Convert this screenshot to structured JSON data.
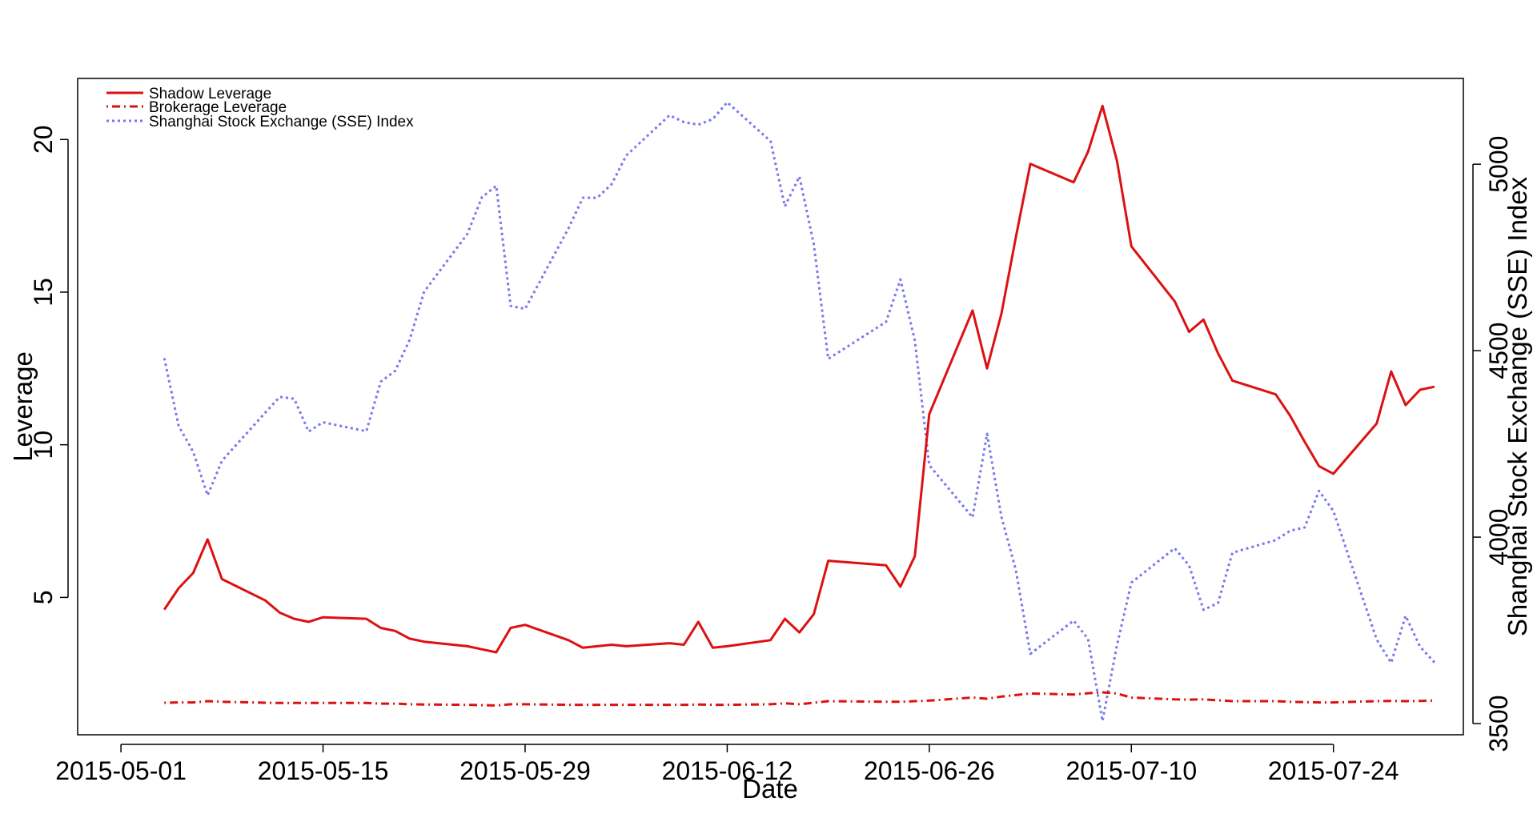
{
  "chart_data": {
    "type": "line",
    "xlabel": "Date",
    "ylabel_left": "Leverage",
    "ylabel_right": "Shanghai Stock Exchange (SSE) Index",
    "x_range": [
      "2015-04-28",
      "2015-08-02"
    ],
    "ylim_left": [
      0.5,
      22
    ],
    "ylim_right": [
      3470,
      5230
    ],
    "x_ticks": [
      "2015-05-01",
      "2015-05-15",
      "2015-05-29",
      "2015-06-12",
      "2015-06-26",
      "2015-07-10",
      "2015-07-24"
    ],
    "y_ticks_left": [
      5,
      10,
      15,
      20
    ],
    "y_ticks_right": [
      3500,
      4000,
      4500,
      5000
    ],
    "legend": {
      "position": "top-left"
    },
    "series": [
      {
        "name": "Shadow Leverage",
        "axis": "left",
        "color": "#dd1111",
        "style": "solid",
        "x": [
          "2015-05-04",
          "2015-05-05",
          "2015-05-06",
          "2015-05-07",
          "2015-05-08",
          "2015-05-11",
          "2015-05-12",
          "2015-05-13",
          "2015-05-14",
          "2015-05-15",
          "2015-05-18",
          "2015-05-19",
          "2015-05-20",
          "2015-05-21",
          "2015-05-22",
          "2015-05-25",
          "2015-05-26",
          "2015-05-27",
          "2015-05-28",
          "2015-05-29",
          "2015-06-01",
          "2015-06-02",
          "2015-06-03",
          "2015-06-04",
          "2015-06-05",
          "2015-06-08",
          "2015-06-09",
          "2015-06-10",
          "2015-06-11",
          "2015-06-12",
          "2015-06-15",
          "2015-06-16",
          "2015-06-17",
          "2015-06-18",
          "2015-06-19",
          "2015-06-23",
          "2015-06-24",
          "2015-06-25",
          "2015-06-26",
          "2015-06-29",
          "2015-06-30",
          "2015-07-01",
          "2015-07-02",
          "2015-07-03",
          "2015-07-06",
          "2015-07-07",
          "2015-07-08",
          "2015-07-09",
          "2015-07-10",
          "2015-07-13",
          "2015-07-14",
          "2015-07-15",
          "2015-07-16",
          "2015-07-17",
          "2015-07-20",
          "2015-07-21",
          "2015-07-22",
          "2015-07-23",
          "2015-07-24",
          "2015-07-27",
          "2015-07-28",
          "2015-07-29",
          "2015-07-30",
          "2015-07-31"
        ],
        "values": [
          4.6,
          5.3,
          5.8,
          6.9,
          5.6,
          4.9,
          4.5,
          4.3,
          4.2,
          4.35,
          4.3,
          4.0,
          3.9,
          3.65,
          3.55,
          3.4,
          3.3,
          3.2,
          4.0,
          4.1,
          3.6,
          3.35,
          3.4,
          3.45,
          3.4,
          3.5,
          3.45,
          4.2,
          3.35,
          3.4,
          3.6,
          4.3,
          3.85,
          4.45,
          6.2,
          6.05,
          5.35,
          6.35,
          11.0,
          14.4,
          12.5,
          14.3,
          16.8,
          19.2,
          18.6,
          19.6,
          21.1,
          19.3,
          16.5,
          14.7,
          13.7,
          14.1,
          13.0,
          12.1,
          11.65,
          10.95,
          10.1,
          9.3,
          9.05,
          10.7,
          12.4,
          11.3,
          11.8,
          11.9
        ]
      },
      {
        "name": "Brokerage Leverage",
        "axis": "left",
        "color": "#dd1111",
        "style": "dotdash",
        "x": [
          "2015-05-04",
          "2015-05-05",
          "2015-05-06",
          "2015-05-07",
          "2015-05-08",
          "2015-05-11",
          "2015-05-12",
          "2015-05-13",
          "2015-05-14",
          "2015-05-15",
          "2015-05-18",
          "2015-05-19",
          "2015-05-20",
          "2015-05-21",
          "2015-05-22",
          "2015-05-25",
          "2015-05-26",
          "2015-05-27",
          "2015-05-28",
          "2015-05-29",
          "2015-06-01",
          "2015-06-02",
          "2015-06-03",
          "2015-06-04",
          "2015-06-05",
          "2015-06-08",
          "2015-06-09",
          "2015-06-10",
          "2015-06-11",
          "2015-06-12",
          "2015-06-15",
          "2015-06-16",
          "2015-06-17",
          "2015-06-18",
          "2015-06-19",
          "2015-06-23",
          "2015-06-24",
          "2015-06-25",
          "2015-06-26",
          "2015-06-29",
          "2015-06-30",
          "2015-07-01",
          "2015-07-02",
          "2015-07-03",
          "2015-07-06",
          "2015-07-07",
          "2015-07-08",
          "2015-07-09",
          "2015-07-10",
          "2015-07-13",
          "2015-07-14",
          "2015-07-15",
          "2015-07-16",
          "2015-07-17",
          "2015-07-20",
          "2015-07-21",
          "2015-07-22",
          "2015-07-23",
          "2015-07-24",
          "2015-07-27",
          "2015-07-28",
          "2015-07-29",
          "2015-07-30",
          "2015-07-31"
        ],
        "values": [
          1.55,
          1.56,
          1.56,
          1.6,
          1.58,
          1.55,
          1.54,
          1.54,
          1.54,
          1.54,
          1.54,
          1.52,
          1.52,
          1.5,
          1.49,
          1.48,
          1.47,
          1.46,
          1.5,
          1.5,
          1.48,
          1.48,
          1.48,
          1.48,
          1.48,
          1.48,
          1.48,
          1.49,
          1.48,
          1.48,
          1.5,
          1.53,
          1.5,
          1.55,
          1.6,
          1.58,
          1.58,
          1.6,
          1.62,
          1.72,
          1.68,
          1.75,
          1.8,
          1.85,
          1.82,
          1.86,
          1.89,
          1.85,
          1.72,
          1.66,
          1.65,
          1.66,
          1.63,
          1.6,
          1.6,
          1.58,
          1.57,
          1.56,
          1.56,
          1.6,
          1.61,
          1.6,
          1.61,
          1.62
        ]
      },
      {
        "name": "Shanghai Stock Exchange (SSE) Index",
        "axis": "right",
        "color": "#7777ee",
        "style": "dotted",
        "x": [
          "2015-05-04",
          "2015-05-05",
          "2015-05-06",
          "2015-05-07",
          "2015-05-08",
          "2015-05-11",
          "2015-05-12",
          "2015-05-13",
          "2015-05-14",
          "2015-05-15",
          "2015-05-18",
          "2015-05-19",
          "2015-05-20",
          "2015-05-21",
          "2015-05-22",
          "2015-05-25",
          "2015-05-26",
          "2015-05-27",
          "2015-05-28",
          "2015-05-29",
          "2015-06-01",
          "2015-06-02",
          "2015-06-03",
          "2015-06-04",
          "2015-06-05",
          "2015-06-08",
          "2015-06-09",
          "2015-06-10",
          "2015-06-11",
          "2015-06-12",
          "2015-06-15",
          "2015-06-16",
          "2015-06-17",
          "2015-06-18",
          "2015-06-19",
          "2015-06-23",
          "2015-06-24",
          "2015-06-25",
          "2015-06-26",
          "2015-06-29",
          "2015-06-30",
          "2015-07-01",
          "2015-07-02",
          "2015-07-03",
          "2015-07-06",
          "2015-07-07",
          "2015-07-08",
          "2015-07-09",
          "2015-07-10",
          "2015-07-13",
          "2015-07-14",
          "2015-07-15",
          "2015-07-16",
          "2015-07-17",
          "2015-07-20",
          "2015-07-21",
          "2015-07-22",
          "2015-07-23",
          "2015-07-24",
          "2015-07-27",
          "2015-07-28",
          "2015-07-29",
          "2015-07-30",
          "2015-07-31"
        ],
        "values": [
          4480,
          4298,
          4229,
          4112,
          4205,
          4334,
          4376,
          4371,
          4283,
          4308,
          4284,
          4417,
          4446,
          4529,
          4658,
          4813,
          4911,
          4942,
          4620,
          4612,
          4828,
          4910,
          4910,
          4947,
          5023,
          5131,
          5113,
          5106,
          5121,
          5166,
          5062,
          4887,
          4967,
          4785,
          4478,
          4577,
          4691,
          4527,
          4193,
          4053,
          4277,
          4054,
          3912,
          3687,
          3776,
          3727,
          3507,
          3710,
          3878,
          3970,
          3924,
          3805,
          3823,
          3958,
          3992,
          4017,
          4026,
          4124,
          4070,
          3725,
          3663,
          3789,
          3706,
          3664
        ]
      }
    ]
  }
}
